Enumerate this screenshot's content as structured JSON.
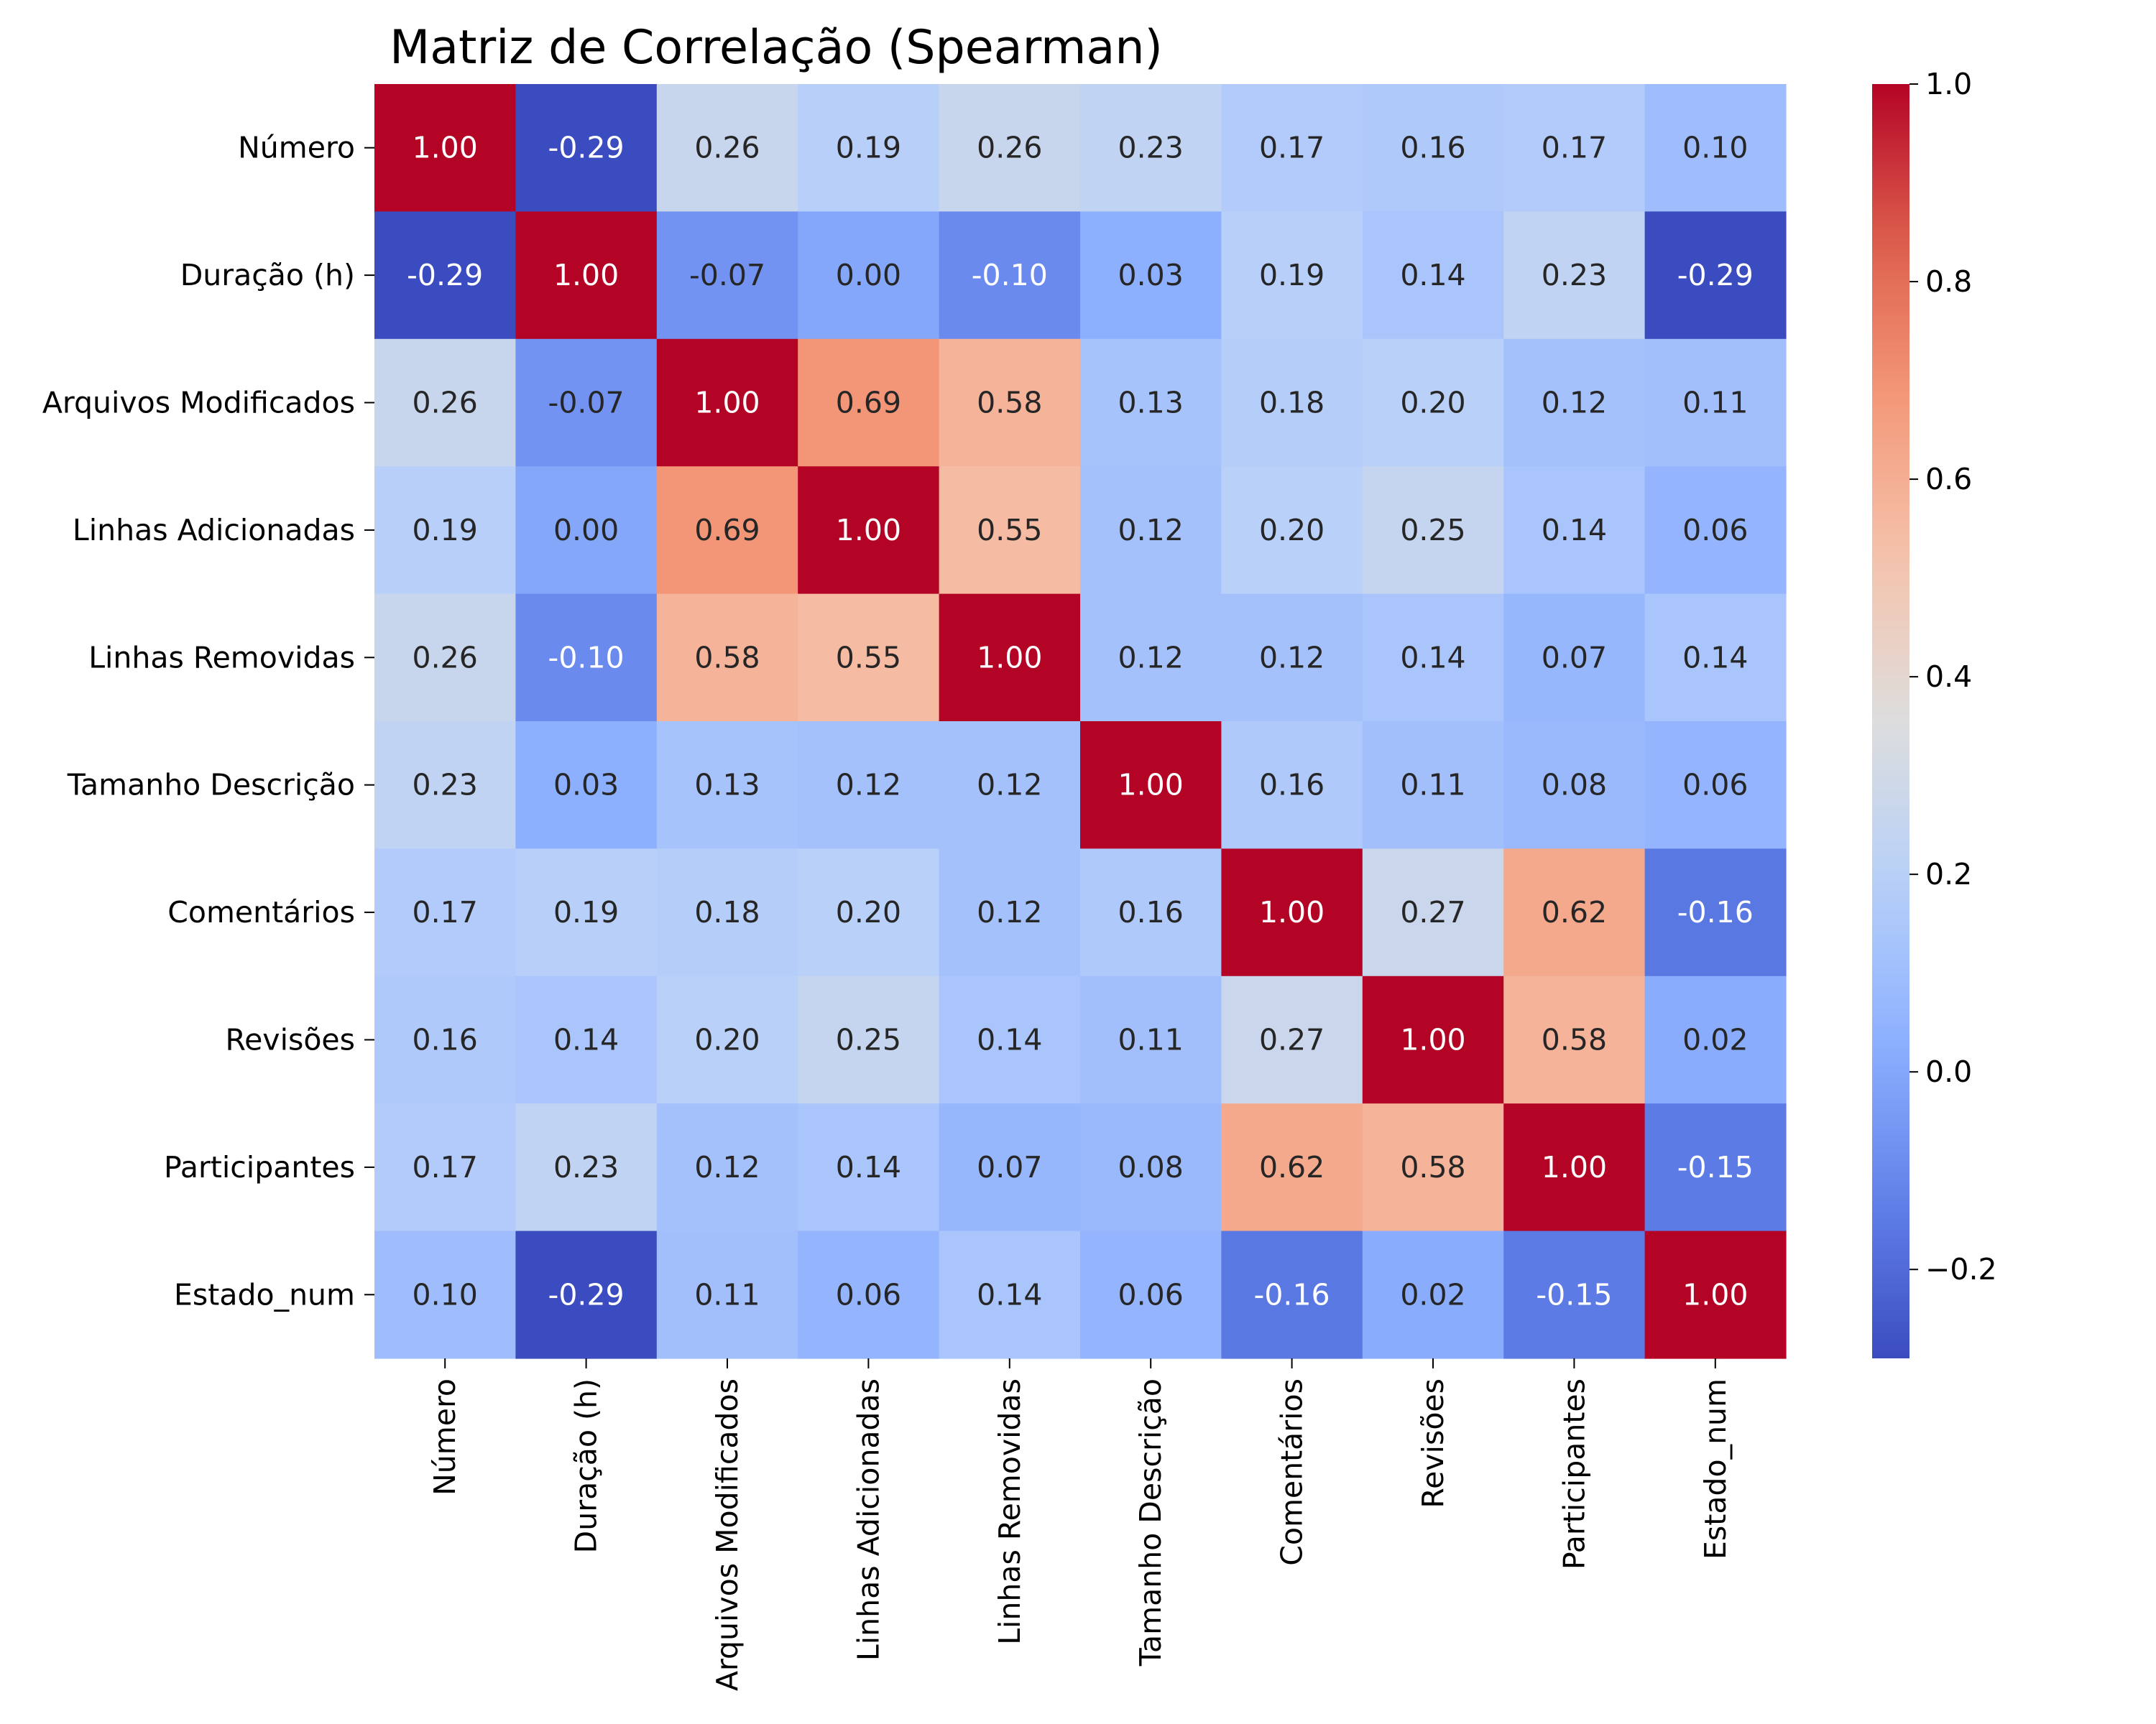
{
  "chart_data": {
    "type": "heatmap",
    "title": "Matriz de Correlação (Spearman)",
    "xlabel": "",
    "ylabel": "",
    "labels": [
      "Número",
      "Duração (h)",
      "Arquivos Modificados",
      "Linhas Adicionadas",
      "Linhas Removidas",
      "Tamanho Descrição",
      "Comentários",
      "Revisões",
      "Participantes",
      "Estado_num"
    ],
    "matrix": [
      [
        1.0,
        -0.29,
        0.26,
        0.19,
        0.26,
        0.23,
        0.17,
        0.16,
        0.17,
        0.1
      ],
      [
        -0.29,
        1.0,
        -0.07,
        0.0,
        -0.1,
        0.03,
        0.19,
        0.14,
        0.23,
        -0.29
      ],
      [
        0.26,
        -0.07,
        1.0,
        0.69,
        0.58,
        0.13,
        0.18,
        0.2,
        0.12,
        0.11
      ],
      [
        0.19,
        0.0,
        0.69,
        1.0,
        0.55,
        0.12,
        0.2,
        0.25,
        0.14,
        0.06
      ],
      [
        0.26,
        -0.1,
        0.58,
        0.55,
        1.0,
        0.12,
        0.12,
        0.14,
        0.07,
        0.14
      ],
      [
        0.23,
        0.03,
        0.13,
        0.12,
        0.12,
        1.0,
        0.16,
        0.11,
        0.08,
        0.06
      ],
      [
        0.17,
        0.19,
        0.18,
        0.2,
        0.12,
        0.16,
        1.0,
        0.27,
        0.62,
        -0.16
      ],
      [
        0.16,
        0.14,
        0.2,
        0.25,
        0.14,
        0.11,
        0.27,
        1.0,
        0.58,
        0.02
      ],
      [
        0.17,
        0.23,
        0.12,
        0.14,
        0.07,
        0.08,
        0.62,
        0.58,
        1.0,
        -0.15
      ],
      [
        0.1,
        -0.29,
        0.11,
        0.06,
        0.14,
        0.06,
        -0.16,
        0.02,
        -0.15,
        1.0
      ]
    ],
    "value_format": "0.00",
    "colormap": "coolwarm",
    "vmin": -0.29,
    "vmax": 1.0,
    "colorbar": {
      "ticks": [
        1.0,
        0.8,
        0.6,
        0.4,
        0.2,
        0.0,
        -0.2
      ],
      "tick_labels": [
        "1.0",
        "0.8",
        "0.6",
        "0.4",
        "0.2",
        "0.0",
        "−0.2"
      ]
    },
    "grid": false,
    "legend": "colorbar-right"
  }
}
